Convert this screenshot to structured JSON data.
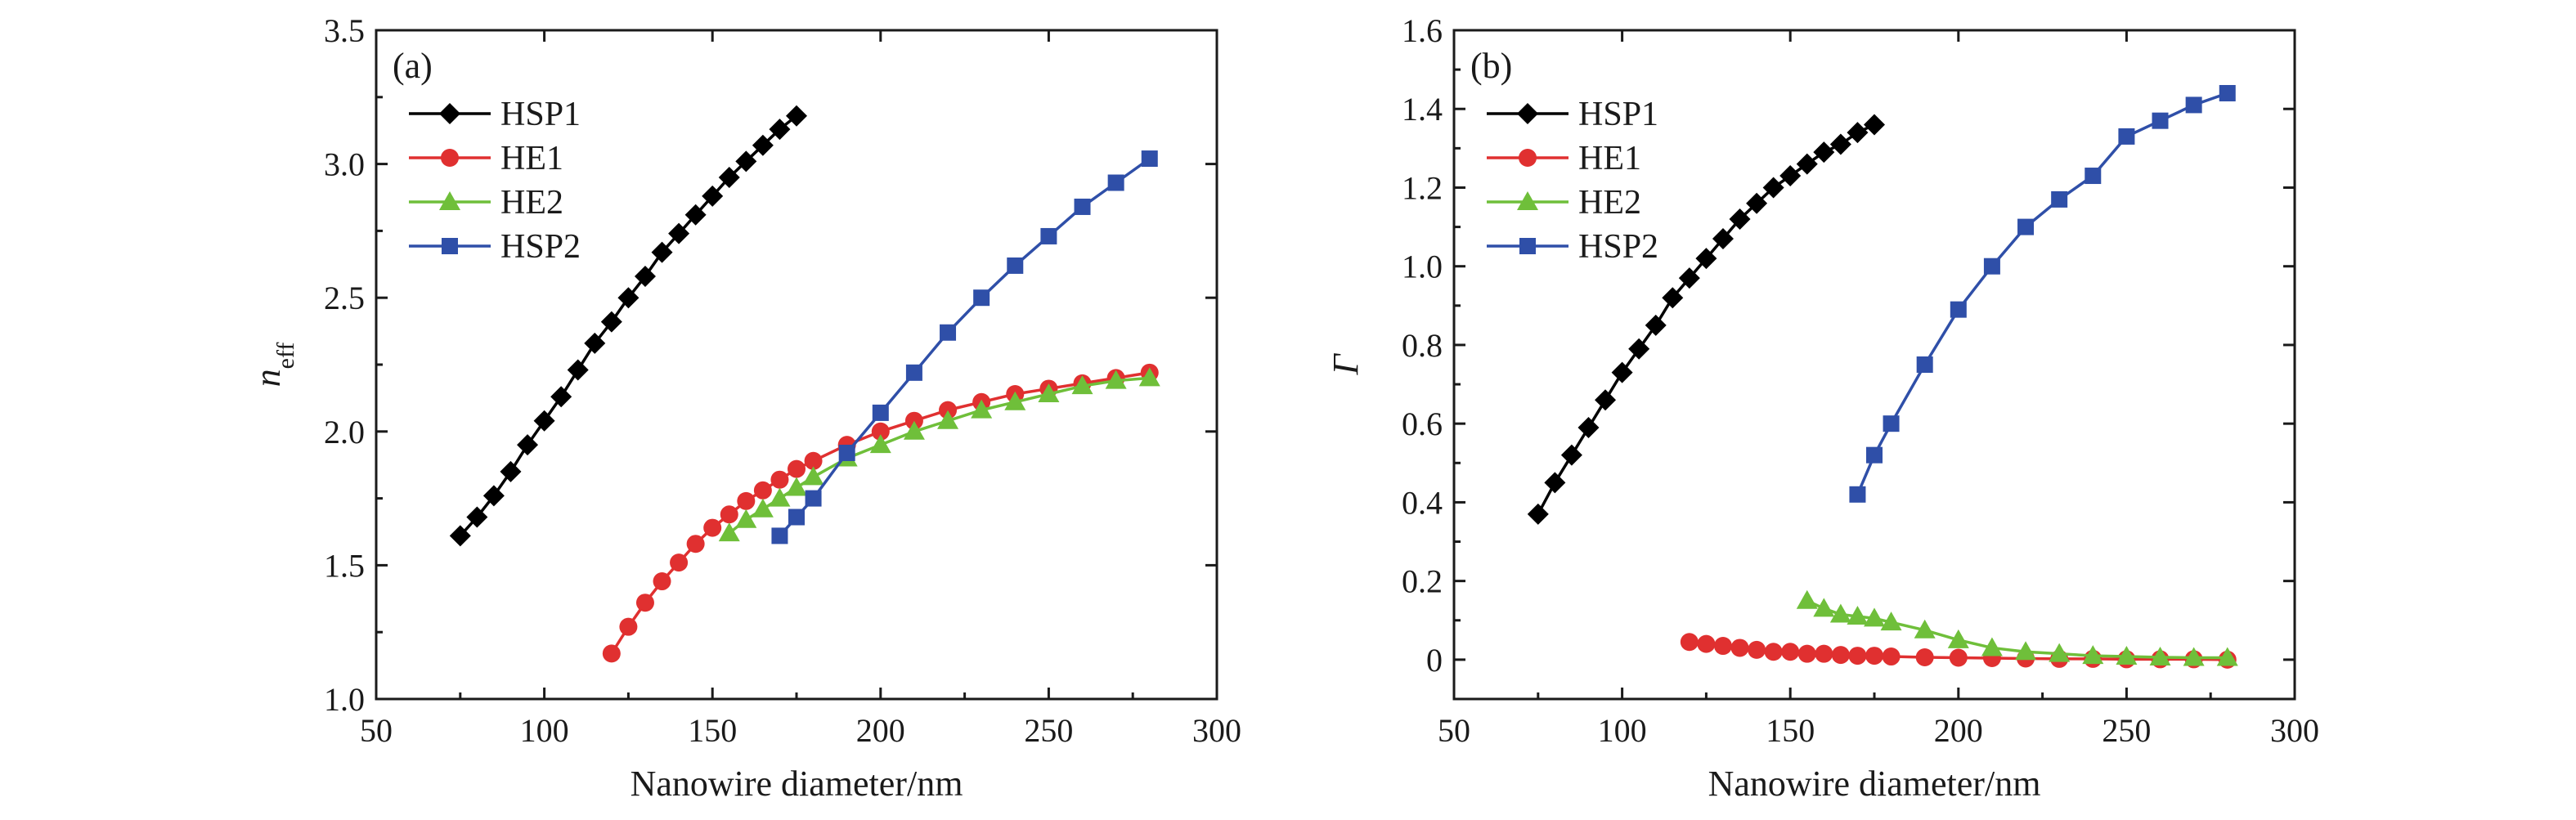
{
  "chart_data": [
    {
      "type": "line",
      "panel_label": "(a)",
      "xlabel": "Nanowire diameter/nm",
      "ylabel": "n",
      "ylabel_sub": "eff",
      "xlim": [
        50,
        300
      ],
      "ylim": [
        1.0,
        3.5
      ],
      "xticks": [
        "50",
        "100",
        "150",
        "200",
        "250",
        "300"
      ],
      "yticks": [
        "1.0",
        "1.5",
        "2.0",
        "2.5",
        "3.0",
        "3.5"
      ],
      "grid": false,
      "legend_position": "top-left",
      "series": [
        {
          "name": "HSP1",
          "color": "#000000",
          "marker": "diamond",
          "x": [
            75,
            80,
            85,
            90,
            95,
            100,
            105,
            110,
            115,
            120,
            125,
            130,
            135,
            140,
            145,
            150,
            155,
            160,
            165,
            170,
            175
          ],
          "y": [
            1.61,
            1.68,
            1.76,
            1.85,
            1.95,
            2.04,
            2.13,
            2.23,
            2.33,
            2.41,
            2.5,
            2.58,
            2.67,
            2.74,
            2.81,
            2.88,
            2.95,
            3.01,
            3.07,
            3.13,
            3.18
          ]
        },
        {
          "name": "HE1",
          "color": "#e03030",
          "marker": "circle",
          "x": [
            120,
            125,
            130,
            135,
            140,
            145,
            150,
            155,
            160,
            165,
            170,
            175,
            180,
            190,
            200,
            210,
            220,
            230,
            240,
            250,
            260,
            270,
            280
          ],
          "y": [
            1.17,
            1.27,
            1.36,
            1.44,
            1.51,
            1.58,
            1.64,
            1.69,
            1.74,
            1.78,
            1.82,
            1.86,
            1.89,
            1.95,
            2.0,
            2.04,
            2.08,
            2.11,
            2.14,
            2.16,
            2.18,
            2.2,
            2.22
          ]
        },
        {
          "name": "HE2",
          "color": "#6fbf3a",
          "marker": "triangle",
          "x": [
            155,
            160,
            165,
            170,
            175,
            180,
            190,
            200,
            210,
            220,
            230,
            240,
            250,
            260,
            270,
            280
          ],
          "y": [
            1.62,
            1.67,
            1.71,
            1.75,
            1.79,
            1.83,
            1.9,
            1.95,
            2.0,
            2.04,
            2.08,
            2.11,
            2.14,
            2.17,
            2.19,
            2.2
          ]
        },
        {
          "name": "HSP2",
          "color": "#2f4fa8",
          "marker": "square",
          "x": [
            170,
            175,
            180,
            190,
            200,
            210,
            220,
            230,
            240,
            250,
            260,
            270,
            280
          ],
          "y": [
            1.61,
            1.68,
            1.75,
            1.92,
            2.07,
            2.22,
            2.37,
            2.5,
            2.62,
            2.73,
            2.84,
            2.93,
            3.02
          ]
        }
      ]
    },
    {
      "type": "line",
      "panel_label": "(b)",
      "xlabel": "Nanowire diameter/nm",
      "ylabel": "Γ",
      "ylabel_sub": "",
      "xlim": [
        50,
        300
      ],
      "ylim": [
        -0.1,
        1.6
      ],
      "xticks": [
        "50",
        "100",
        "150",
        "200",
        "250",
        "300"
      ],
      "yticks": [
        "0",
        "0.2",
        "0.4",
        "0.6",
        "0.8",
        "1.0",
        "1.2",
        "1.4",
        "1.6"
      ],
      "grid": false,
      "legend_position": "top-left",
      "series": [
        {
          "name": "HSP1",
          "color": "#000000",
          "marker": "diamond",
          "x": [
            75,
            80,
            85,
            90,
            95,
            100,
            105,
            110,
            115,
            120,
            125,
            130,
            135,
            140,
            145,
            150,
            155,
            160,
            165,
            170,
            175
          ],
          "y": [
            0.37,
            0.45,
            0.52,
            0.59,
            0.66,
            0.73,
            0.79,
            0.85,
            0.92,
            0.97,
            1.02,
            1.07,
            1.12,
            1.16,
            1.2,
            1.23,
            1.26,
            1.29,
            1.31,
            1.34,
            1.36
          ]
        },
        {
          "name": "HE1",
          "color": "#e03030",
          "marker": "circle",
          "x": [
            120,
            125,
            130,
            135,
            140,
            145,
            150,
            155,
            160,
            165,
            170,
            175,
            180,
            190,
            200,
            210,
            220,
            230,
            240,
            250,
            260,
            270,
            280
          ],
          "y": [
            0.045,
            0.04,
            0.035,
            0.03,
            0.025,
            0.02,
            0.02,
            0.015,
            0.015,
            0.012,
            0.01,
            0.01,
            0.008,
            0.006,
            0.005,
            0.004,
            0.003,
            0.002,
            0.002,
            0.001,
            0.001,
            0.001,
            0.0
          ]
        },
        {
          "name": "HE2",
          "color": "#6fbf3a",
          "marker": "triangle",
          "x": [
            155,
            160,
            165,
            170,
            175,
            180,
            190,
            200,
            210,
            220,
            230,
            240,
            250,
            260,
            270,
            280
          ],
          "y": [
            0.15,
            0.13,
            0.115,
            0.11,
            0.105,
            0.095,
            0.075,
            0.05,
            0.03,
            0.02,
            0.015,
            0.01,
            0.008,
            0.006,
            0.005,
            0.005
          ]
        },
        {
          "name": "HSP2",
          "color": "#2f4fa8",
          "marker": "square",
          "x": [
            170,
            175,
            180,
            190,
            200,
            210,
            220,
            230,
            240,
            250,
            260,
            270,
            280
          ],
          "y": [
            0.42,
            0.52,
            0.6,
            0.75,
            0.89,
            1.0,
            1.1,
            1.17,
            1.23,
            1.33,
            1.37,
            1.41,
            1.44
          ]
        }
      ]
    }
  ]
}
